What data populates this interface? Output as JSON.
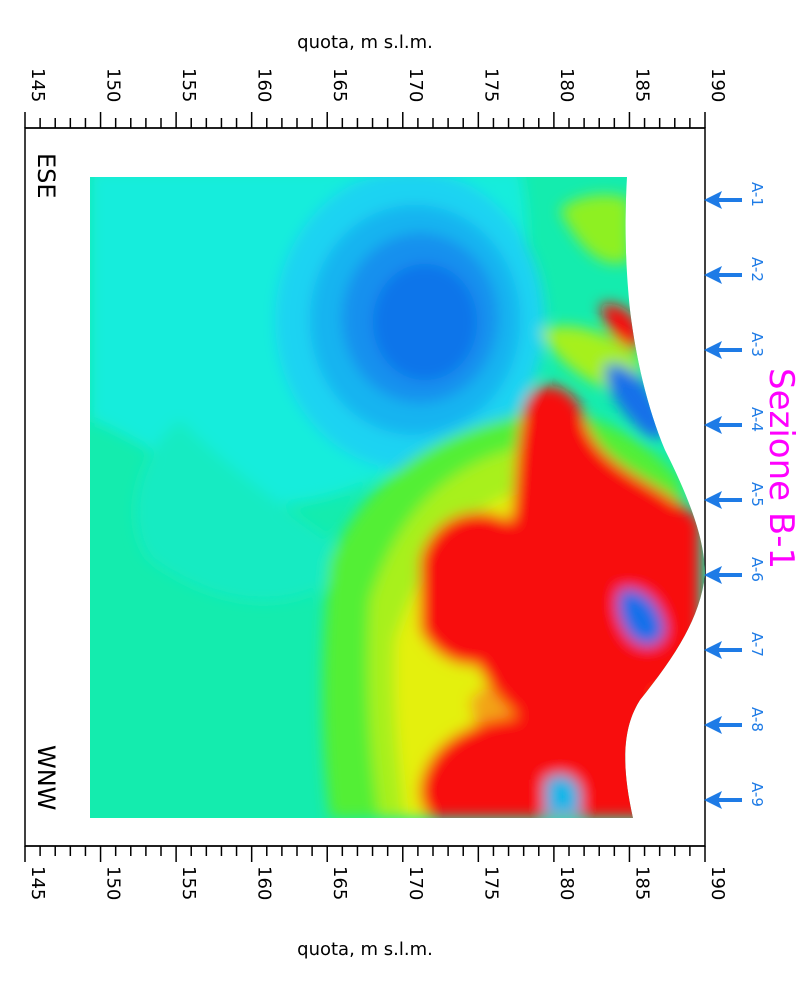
{
  "axis": {
    "label_top": "quota, m s.l.m.",
    "label_bottom": "quota, m s.l.m.",
    "ticks": [
      "145",
      "150",
      "155",
      "160",
      "165",
      "170",
      "175",
      "180",
      "185",
      "190"
    ],
    "range": [
      145,
      190
    ],
    "minor_step": 1
  },
  "section": {
    "title": "Sezione B-1",
    "title_color": "#ff00ff",
    "left_end": "ESE",
    "right_end": "WNW"
  },
  "boreholes": {
    "color": "#1e7be6",
    "labels": [
      "A-1",
      "A-2",
      "A-3",
      "A-4",
      "A-5",
      "A-6",
      "A-7",
      "A-8",
      "A-9"
    ]
  }
}
